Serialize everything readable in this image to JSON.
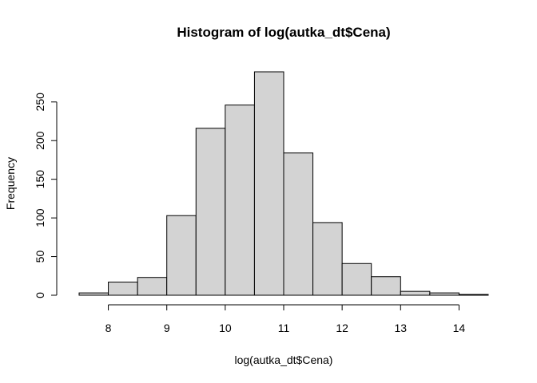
{
  "chart_data": {
    "type": "bar",
    "title": "Histogram of log(autka_dt$Cena)",
    "xlabel": "log(autka_dt$Cena)",
    "ylabel": "Frequency",
    "bin_edges": [
      7.5,
      8.0,
      8.5,
      9.0,
      9.5,
      10.0,
      10.5,
      11.0,
      11.5,
      12.0,
      12.5,
      13.0,
      13.5,
      14.0,
      14.5
    ],
    "values": [
      3,
      17,
      23,
      103,
      216,
      246,
      289,
      184,
      94,
      41,
      24,
      5,
      3,
      1
    ],
    "xlim": [
      7.5,
      14.5
    ],
    "ylim": [
      0,
      289
    ],
    "x_ticks": [
      8,
      9,
      10,
      11,
      12,
      13,
      14
    ],
    "x_tick_labels": [
      "8",
      "9",
      "10",
      "11",
      "12",
      "13",
      "14"
    ],
    "y_ticks": [
      0,
      50,
      100,
      150,
      200,
      250
    ],
    "y_tick_labels": [
      "0",
      "50",
      "100",
      "150",
      "200",
      "250"
    ],
    "grid": false,
    "bar_fill": "#d3d3d3",
    "bar_stroke": "#000000"
  }
}
